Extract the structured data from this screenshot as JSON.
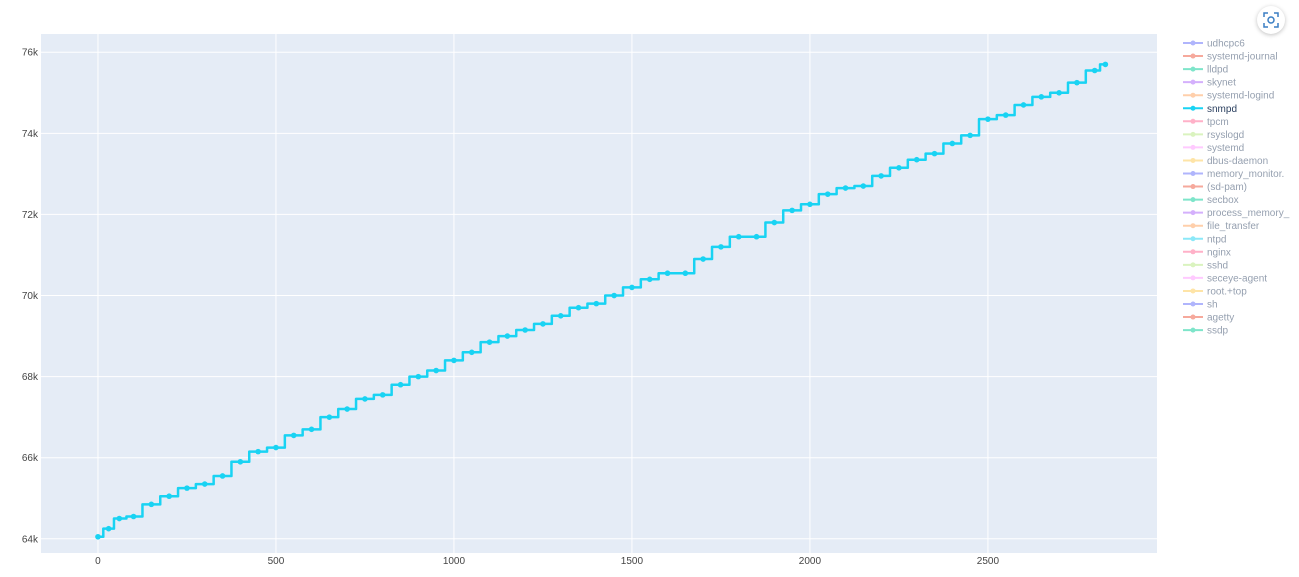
{
  "chart_data": {
    "type": "line",
    "mode": "lines+markers",
    "title": "",
    "xlabel": "",
    "ylabel": "",
    "xlim": [
      -160,
      2975
    ],
    "ylim": [
      63650,
      76450
    ],
    "x_ticks": [
      0,
      500,
      1000,
      1500,
      2000,
      2500
    ],
    "x_tick_labels": [
      "0",
      "500",
      "1000",
      "1500",
      "2000",
      "2500"
    ],
    "y_ticks": [
      64000,
      66000,
      68000,
      70000,
      72000,
      74000,
      76000
    ],
    "y_tick_labels": [
      "64k",
      "66k",
      "68k",
      "70k",
      "72k",
      "74k",
      "76k"
    ],
    "grid": true,
    "background_color": "#e5ecf6",
    "legend_position": "right",
    "series": [
      {
        "name": "udhcpc6",
        "color": "#636efa",
        "visible": "legendonly"
      },
      {
        "name": "systemd-journal",
        "color": "#ef553b",
        "visible": "legendonly"
      },
      {
        "name": "lldpd",
        "color": "#00cc96",
        "visible": "legendonly"
      },
      {
        "name": "skynet",
        "color": "#ab63fa",
        "visible": "legendonly"
      },
      {
        "name": "systemd-logind",
        "color": "#ffa15a",
        "visible": "legendonly"
      },
      {
        "name": "snmpd",
        "color": "#19d3f3",
        "visible": true,
        "x": [
          0,
          30,
          60,
          100,
          150,
          200,
          250,
          300,
          350,
          400,
          450,
          500,
          550,
          600,
          650,
          700,
          750,
          800,
          850,
          900,
          950,
          1000,
          1050,
          1100,
          1150,
          1200,
          1250,
          1300,
          1350,
          1400,
          1450,
          1500,
          1550,
          1600,
          1650,
          1700,
          1750,
          1800,
          1850,
          1900,
          1950,
          2000,
          2050,
          2100,
          2150,
          2200,
          2250,
          2300,
          2350,
          2400,
          2450,
          2500,
          2550,
          2600,
          2650,
          2700,
          2750,
          2800,
          2830
        ],
        "y": [
          64050,
          64250,
          64500,
          64550,
          64850,
          65050,
          65250,
          65350,
          65550,
          65900,
          66150,
          66250,
          66550,
          66700,
          67000,
          67200,
          67450,
          67550,
          67800,
          68000,
          68150,
          68400,
          68600,
          68850,
          69000,
          69150,
          69300,
          69500,
          69700,
          69800,
          70000,
          70200,
          70400,
          70550,
          70550,
          70900,
          71200,
          71450,
          71450,
          71800,
          72100,
          72250,
          72500,
          72650,
          72700,
          72950,
          73150,
          73350,
          73500,
          73750,
          73950,
          74350,
          74450,
          74700,
          74900,
          75000,
          75250,
          75550,
          75700
        ]
      },
      {
        "name": "tpcm",
        "color": "#ff6692",
        "visible": "legendonly"
      },
      {
        "name": "rsyslogd",
        "color": "#b6e880",
        "visible": "legendonly"
      },
      {
        "name": "systemd",
        "color": "#ff97ff",
        "visible": "legendonly"
      },
      {
        "name": "dbus-daemon",
        "color": "#fecb52",
        "visible": "legendonly"
      },
      {
        "name": "memory_monitor.",
        "color": "#636efa",
        "visible": "legendonly"
      },
      {
        "name": "(sd-pam)",
        "color": "#ef553b",
        "visible": "legendonly"
      },
      {
        "name": "secbox",
        "color": "#00cc96",
        "visible": "legendonly"
      },
      {
        "name": "process_memory_",
        "color": "#ab63fa",
        "visible": "legendonly"
      },
      {
        "name": "file_transfer",
        "color": "#ffa15a",
        "visible": "legendonly"
      },
      {
        "name": "ntpd",
        "color": "#19d3f3",
        "visible": "legendonly"
      },
      {
        "name": "nginx",
        "color": "#ff6692",
        "visible": "legendonly"
      },
      {
        "name": "sshd",
        "color": "#b6e880",
        "visible": "legendonly"
      },
      {
        "name": "seceye-agent",
        "color": "#ff97ff",
        "visible": "legendonly"
      },
      {
        "name": "root.+top",
        "color": "#fecb52",
        "visible": "legendonly"
      },
      {
        "name": "sh",
        "color": "#636efa",
        "visible": "legendonly"
      },
      {
        "name": "agetty",
        "color": "#ef553b",
        "visible": "legendonly"
      },
      {
        "name": "ssdp",
        "color": "#00cc96",
        "visible": "legendonly"
      }
    ]
  },
  "modebar": {
    "icon": "screenshot-icon"
  }
}
